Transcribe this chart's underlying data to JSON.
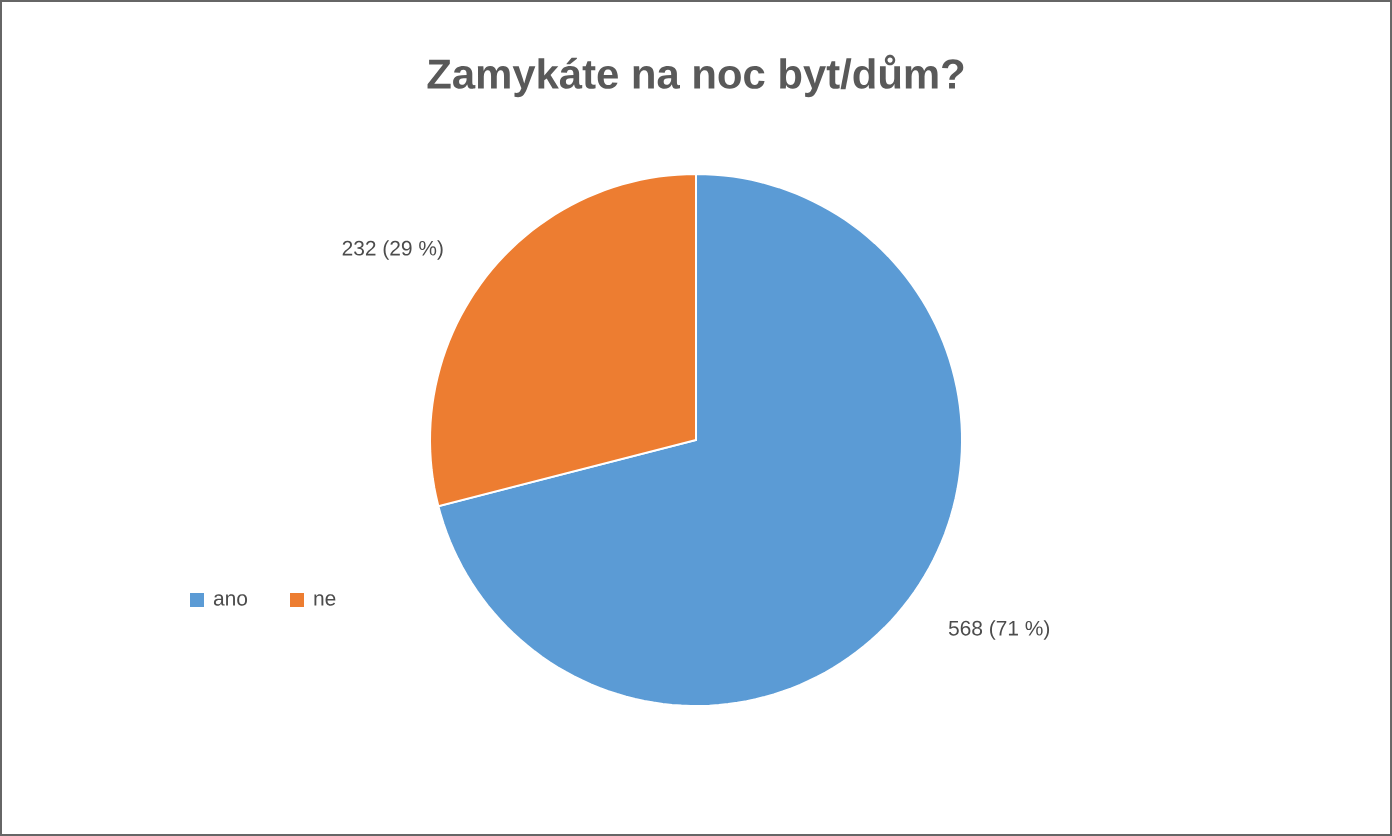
{
  "chart_data": {
    "type": "pie",
    "title": "Zamykáte na noc byt/dům?",
    "categories": [
      "ano",
      "ne"
    ],
    "values": [
      568,
      232
    ],
    "colors": [
      "#5b9bd5",
      "#ed7d31"
    ],
    "value_labels": [
      "568 (71 %)",
      "232 (29 %)"
    ],
    "legend": "left"
  }
}
